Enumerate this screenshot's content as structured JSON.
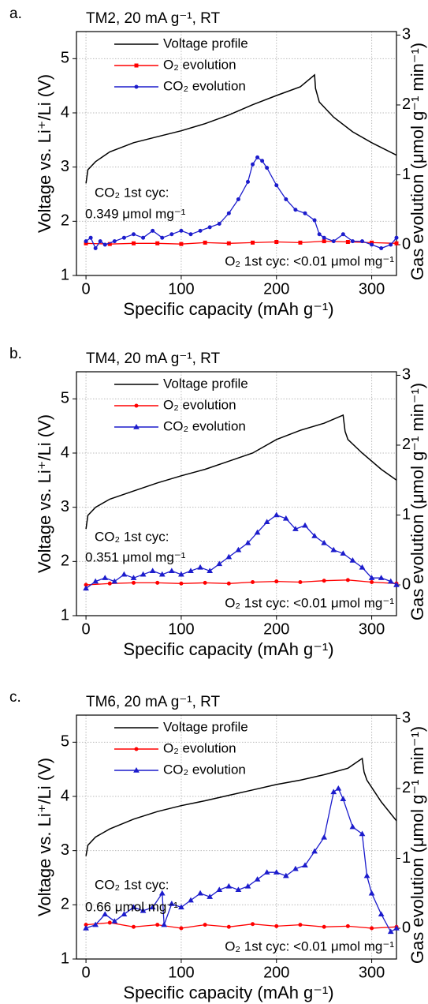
{
  "chart_data": [
    {
      "type": "line",
      "panel_label": "a.",
      "title": "TM2, 20 mA g⁻¹, RT",
      "x_label": "Specific capacity (mAh g⁻¹)",
      "y_label": "Voltage vs. Li⁺/Li (V)",
      "y2_label": "Gas evolution (μmol g⁻¹ min⁻¹)",
      "xlim": [
        -10,
        326
      ],
      "ylim": [
        1,
        5.5
      ],
      "y2lim": [
        -0.44,
        3.05
      ],
      "xticks": [
        0,
        100,
        200,
        300
      ],
      "yticks": [
        1,
        2,
        3,
        4,
        5
      ],
      "y2ticks": [
        0,
        1,
        2,
        3
      ],
      "grid": true,
      "legend": "upper left",
      "series": [
        {
          "name": "Voltage profile",
          "color": "#000000",
          "marker": "none",
          "x": [
            0,
            2,
            10,
            25,
            50,
            75,
            100,
            125,
            150,
            175,
            200,
            225,
            240,
            241,
            245,
            260,
            280,
            300,
            326
          ],
          "values": [
            2.7,
            2.95,
            3.1,
            3.28,
            3.45,
            3.56,
            3.67,
            3.8,
            3.96,
            4.15,
            4.32,
            4.48,
            4.7,
            4.45,
            4.2,
            3.92,
            3.65,
            3.45,
            3.22
          ]
        },
        {
          "name": "O₂ evolution",
          "color": "#ff0000",
          "marker": "square",
          "axis": "y2",
          "x": [
            0,
            25,
            50,
            75,
            100,
            125,
            150,
            175,
            200,
            225,
            250,
            275,
            300,
            326
          ],
          "values": [
            0.02,
            0.01,
            0.02,
            0.02,
            0.01,
            0.03,
            0.02,
            0.03,
            0.04,
            0.03,
            0.05,
            0.04,
            0.03,
            0.02
          ]
        },
        {
          "name": "CO₂ evolution",
          "color": "#1c1ccc",
          "marker": "circle",
          "axis": "y2",
          "x": [
            0,
            5,
            10,
            15,
            20,
            30,
            40,
            50,
            60,
            70,
            80,
            90,
            100,
            110,
            120,
            130,
            140,
            150,
            160,
            170,
            175,
            180,
            185,
            190,
            200,
            210,
            220,
            230,
            240,
            245,
            250,
            260,
            270,
            280,
            290,
            300,
            310,
            320,
            326
          ],
          "values": [
            0.05,
            0.1,
            -0.05,
            0.05,
            0,
            0.05,
            0.1,
            0.15,
            0.1,
            0.2,
            0.1,
            0.15,
            0.2,
            0.15,
            0.2,
            0.25,
            0.3,
            0.45,
            0.65,
            0.9,
            1.15,
            1.25,
            1.2,
            1.1,
            0.85,
            0.65,
            0.5,
            0.45,
            0.35,
            0.15,
            0.1,
            0.05,
            0.15,
            0.05,
            0.05,
            0,
            -0.05,
            0,
            0.1
          ]
        }
      ],
      "annotations": [
        "CO₂ 1st cyc:",
        "0.349 μmol mg⁻¹",
        "O₂ 1st cyc: <0.01 μmol mg⁻¹"
      ]
    },
    {
      "type": "line",
      "panel_label": "b.",
      "title": "TM4, 20 mA g⁻¹, RT",
      "x_label": "Specific capacity (mAh g⁻¹)",
      "y_label": "Voltage vs. Li⁺/Li (V)",
      "y2_label": "Gas evolution (μmol g⁻¹ min⁻¹)",
      "xlim": [
        -10,
        326
      ],
      "ylim": [
        1,
        5.5
      ],
      "y2lim": [
        -0.44,
        3.05
      ],
      "xticks": [
        0,
        100,
        200,
        300
      ],
      "yticks": [
        1,
        2,
        3,
        4,
        5
      ],
      "y2ticks": [
        0,
        1,
        2,
        3
      ],
      "grid": true,
      "legend": "upper left",
      "series": [
        {
          "name": "Voltage profile",
          "color": "#000000",
          "marker": "none",
          "x": [
            0,
            2,
            10,
            25,
            50,
            75,
            100,
            125,
            150,
            175,
            200,
            225,
            250,
            270,
            272,
            275,
            290,
            310,
            326
          ],
          "values": [
            2.6,
            2.85,
            3.0,
            3.15,
            3.3,
            3.45,
            3.58,
            3.7,
            3.85,
            4.0,
            4.25,
            4.42,
            4.55,
            4.7,
            4.4,
            4.25,
            4.0,
            3.7,
            3.5
          ]
        },
        {
          "name": "O₂ evolution",
          "color": "#ff0000",
          "marker": "circle",
          "axis": "y2",
          "x": [
            0,
            25,
            50,
            75,
            100,
            125,
            150,
            175,
            200,
            225,
            250,
            275,
            300,
            326
          ],
          "values": [
            0.0,
            0.02,
            0.03,
            0.03,
            0.02,
            0.03,
            0.02,
            0.04,
            0.05,
            0.04,
            0.06,
            0.07,
            0.04,
            0.02
          ]
        },
        {
          "name": "CO₂ evolution",
          "color": "#1c1ccc",
          "marker": "triangle",
          "axis": "y2",
          "x": [
            0,
            10,
            20,
            30,
            40,
            50,
            60,
            70,
            80,
            90,
            100,
            110,
            120,
            130,
            140,
            150,
            160,
            170,
            180,
            190,
            200,
            210,
            220,
            230,
            240,
            250,
            260,
            270,
            280,
            290,
            300,
            310,
            320,
            326
          ],
          "values": [
            -0.05,
            0.05,
            0.1,
            0.05,
            0.15,
            0.1,
            0.15,
            0.2,
            0.15,
            0.2,
            0.15,
            0.2,
            0.25,
            0.2,
            0.3,
            0.4,
            0.5,
            0.6,
            0.75,
            0.9,
            1.0,
            0.95,
            0.8,
            0.85,
            0.7,
            0.6,
            0.5,
            0.45,
            0.35,
            0.25,
            0.1,
            0.1,
            0.05,
            0
          ]
        }
      ],
      "annotations": [
        "CO₂ 1st cyc:",
        "0.351 μmol mg⁻¹",
        "O₂ 1st cyc: <0.01 μmol mg⁻¹"
      ]
    },
    {
      "type": "line",
      "panel_label": "c.",
      "title": "TM6, 20 mA g⁻¹, RT",
      "x_label": "Specific capacity (mAh g⁻¹)",
      "y_label": "Voltage vs. Li⁺/Li (V)",
      "y2_label": "Gas evolution (μmol g⁻¹ min⁻¹)",
      "xlim": [
        -10,
        326
      ],
      "ylim": [
        1,
        5.5
      ],
      "y2lim": [
        -0.44,
        3.05
      ],
      "xticks": [
        0,
        100,
        200,
        300
      ],
      "yticks": [
        1,
        2,
        3,
        4,
        5
      ],
      "y2ticks": [
        0,
        1,
        2,
        3
      ],
      "grid": true,
      "legend": "upper left",
      "series": [
        {
          "name": "Voltage profile",
          "color": "#000000",
          "marker": "none",
          "x": [
            0,
            2,
            10,
            25,
            50,
            75,
            100,
            125,
            150,
            175,
            200,
            225,
            250,
            275,
            290,
            292,
            295,
            310,
            326
          ],
          "values": [
            2.9,
            3.1,
            3.25,
            3.4,
            3.58,
            3.72,
            3.83,
            3.92,
            4.02,
            4.12,
            4.22,
            4.3,
            4.4,
            4.52,
            4.7,
            4.45,
            4.3,
            3.9,
            3.55
          ]
        },
        {
          "name": "O₂ evolution",
          "color": "#ff0000",
          "marker": "circle",
          "axis": "y2",
          "x": [
            0,
            25,
            50,
            75,
            100,
            125,
            150,
            175,
            200,
            225,
            250,
            275,
            300,
            326
          ],
          "values": [
            0.05,
            0.08,
            0.02,
            0.05,
            0.0,
            0.05,
            0.02,
            0.06,
            0.03,
            0.05,
            0.02,
            0.03,
            0.0,
            0.02
          ]
        },
        {
          "name": "CO₂ evolution",
          "color": "#1c1ccc",
          "marker": "triangle",
          "axis": "y2",
          "x": [
            0,
            10,
            20,
            30,
            40,
            50,
            60,
            70,
            80,
            82,
            90,
            100,
            110,
            120,
            130,
            140,
            150,
            160,
            170,
            180,
            190,
            200,
            210,
            220,
            230,
            240,
            250,
            260,
            265,
            270,
            280,
            290,
            295,
            300,
            310,
            320,
            326
          ],
          "values": [
            0,
            0.05,
            0.2,
            0.1,
            0.2,
            0.3,
            0.25,
            0.3,
            0.5,
            0.05,
            0.35,
            0.3,
            0.4,
            0.5,
            0.45,
            0.55,
            0.6,
            0.55,
            0.6,
            0.7,
            0.8,
            0.8,
            0.75,
            0.85,
            0.9,
            1.1,
            1.3,
            1.95,
            2.0,
            1.85,
            1.45,
            1.35,
            0.75,
            0.5,
            0.2,
            -0.05,
            0
          ]
        }
      ],
      "annotations": [
        "CO₂ 1st cyc:",
        "0.66 μmol mg⁻¹",
        "O₂ 1st cyc: <0.01 μmol mg⁻¹"
      ]
    }
  ]
}
